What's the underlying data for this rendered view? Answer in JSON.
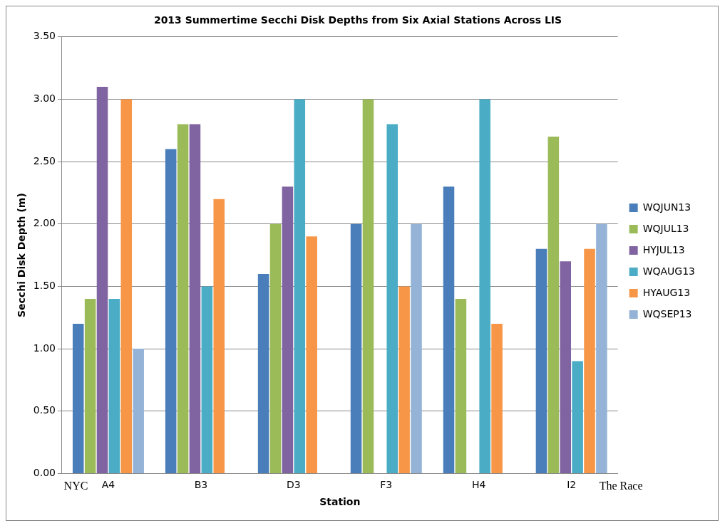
{
  "chart_data": {
    "type": "bar",
    "title": "2013 Summertime Secchi Disk Depths from Six Axial Stations Across LIS",
    "xlabel": "Station",
    "ylabel": "Secchi Disk Depth (m)",
    "categories": [
      "A4",
      "B3",
      "D3",
      "F3",
      "H4",
      "I2"
    ],
    "series": [
      {
        "name": "WQJUN13",
        "color": "#4a7ebb",
        "values": [
          1.2,
          2.6,
          1.6,
          2.0,
          2.3,
          1.8
        ]
      },
      {
        "name": "WQJUL13",
        "color": "#9bbb59",
        "values": [
          1.4,
          2.8,
          2.0,
          3.0,
          1.4,
          2.7
        ]
      },
      {
        "name": "HYJUL13",
        "color": "#8064a2",
        "values": [
          3.1,
          2.8,
          2.3,
          null,
          null,
          1.7
        ]
      },
      {
        "name": "WQAUG13",
        "color": "#4bacc6",
        "values": [
          1.4,
          1.5,
          3.0,
          2.8,
          3.0,
          0.9
        ]
      },
      {
        "name": "HYAUG13",
        "color": "#f79646",
        "values": [
          3.0,
          2.2,
          1.9,
          1.5,
          1.2,
          1.8
        ]
      },
      {
        "name": "WQSEP13",
        "color": "#95b3d7",
        "values": [
          1.0,
          null,
          null,
          2.0,
          null,
          2.0
        ]
      }
    ],
    "ylim": [
      0,
      3.5
    ],
    "yticks": [
      {
        "value": 0,
        "label": "0.00"
      },
      {
        "value": 0.5,
        "label": "0.50"
      },
      {
        "value": 1,
        "label": "1.00"
      },
      {
        "value": 1.5,
        "label": "1.50"
      },
      {
        "value": 2,
        "label": "2.00"
      },
      {
        "value": 2.5,
        "label": "2.50"
      },
      {
        "value": 3,
        "label": "3.00"
      },
      {
        "value": 3.5,
        "label": "3.50"
      }
    ],
    "grid": "y",
    "legend": "right",
    "annotations": [
      "NYC",
      "The Race"
    ]
  }
}
